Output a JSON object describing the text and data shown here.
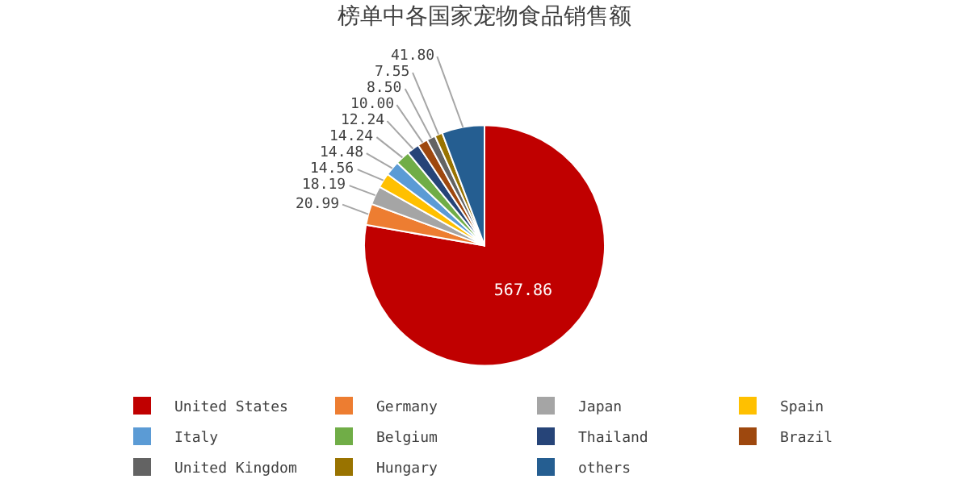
{
  "chart_data": {
    "type": "pie",
    "title": "榜单中各国家宠物食品销售额",
    "categories": [
      "United States",
      "Germany",
      "Japan",
      "Spain",
      "Italy",
      "Belgium",
      "Thailand",
      "Brazil",
      "United Kingdom",
      "Hungary",
      "others"
    ],
    "values": [
      567.86,
      20.99,
      18.19,
      14.56,
      14.48,
      14.24,
      12.24,
      10.0,
      8.5,
      7.55,
      41.8
    ],
    "value_labels": [
      "567.86",
      "20.99",
      "18.19",
      "14.56",
      "14.48",
      "14.24",
      "12.24",
      "10.00",
      "8.50",
      "7.55",
      "41.80"
    ],
    "colors": [
      "#c00000",
      "#ed7d31",
      "#a5a5a5",
      "#ffc000",
      "#5b9bd5",
      "#70ad47",
      "#264478",
      "#9e480e",
      "#636363",
      "#997300",
      "#255e91"
    ],
    "legend": "bottom"
  }
}
